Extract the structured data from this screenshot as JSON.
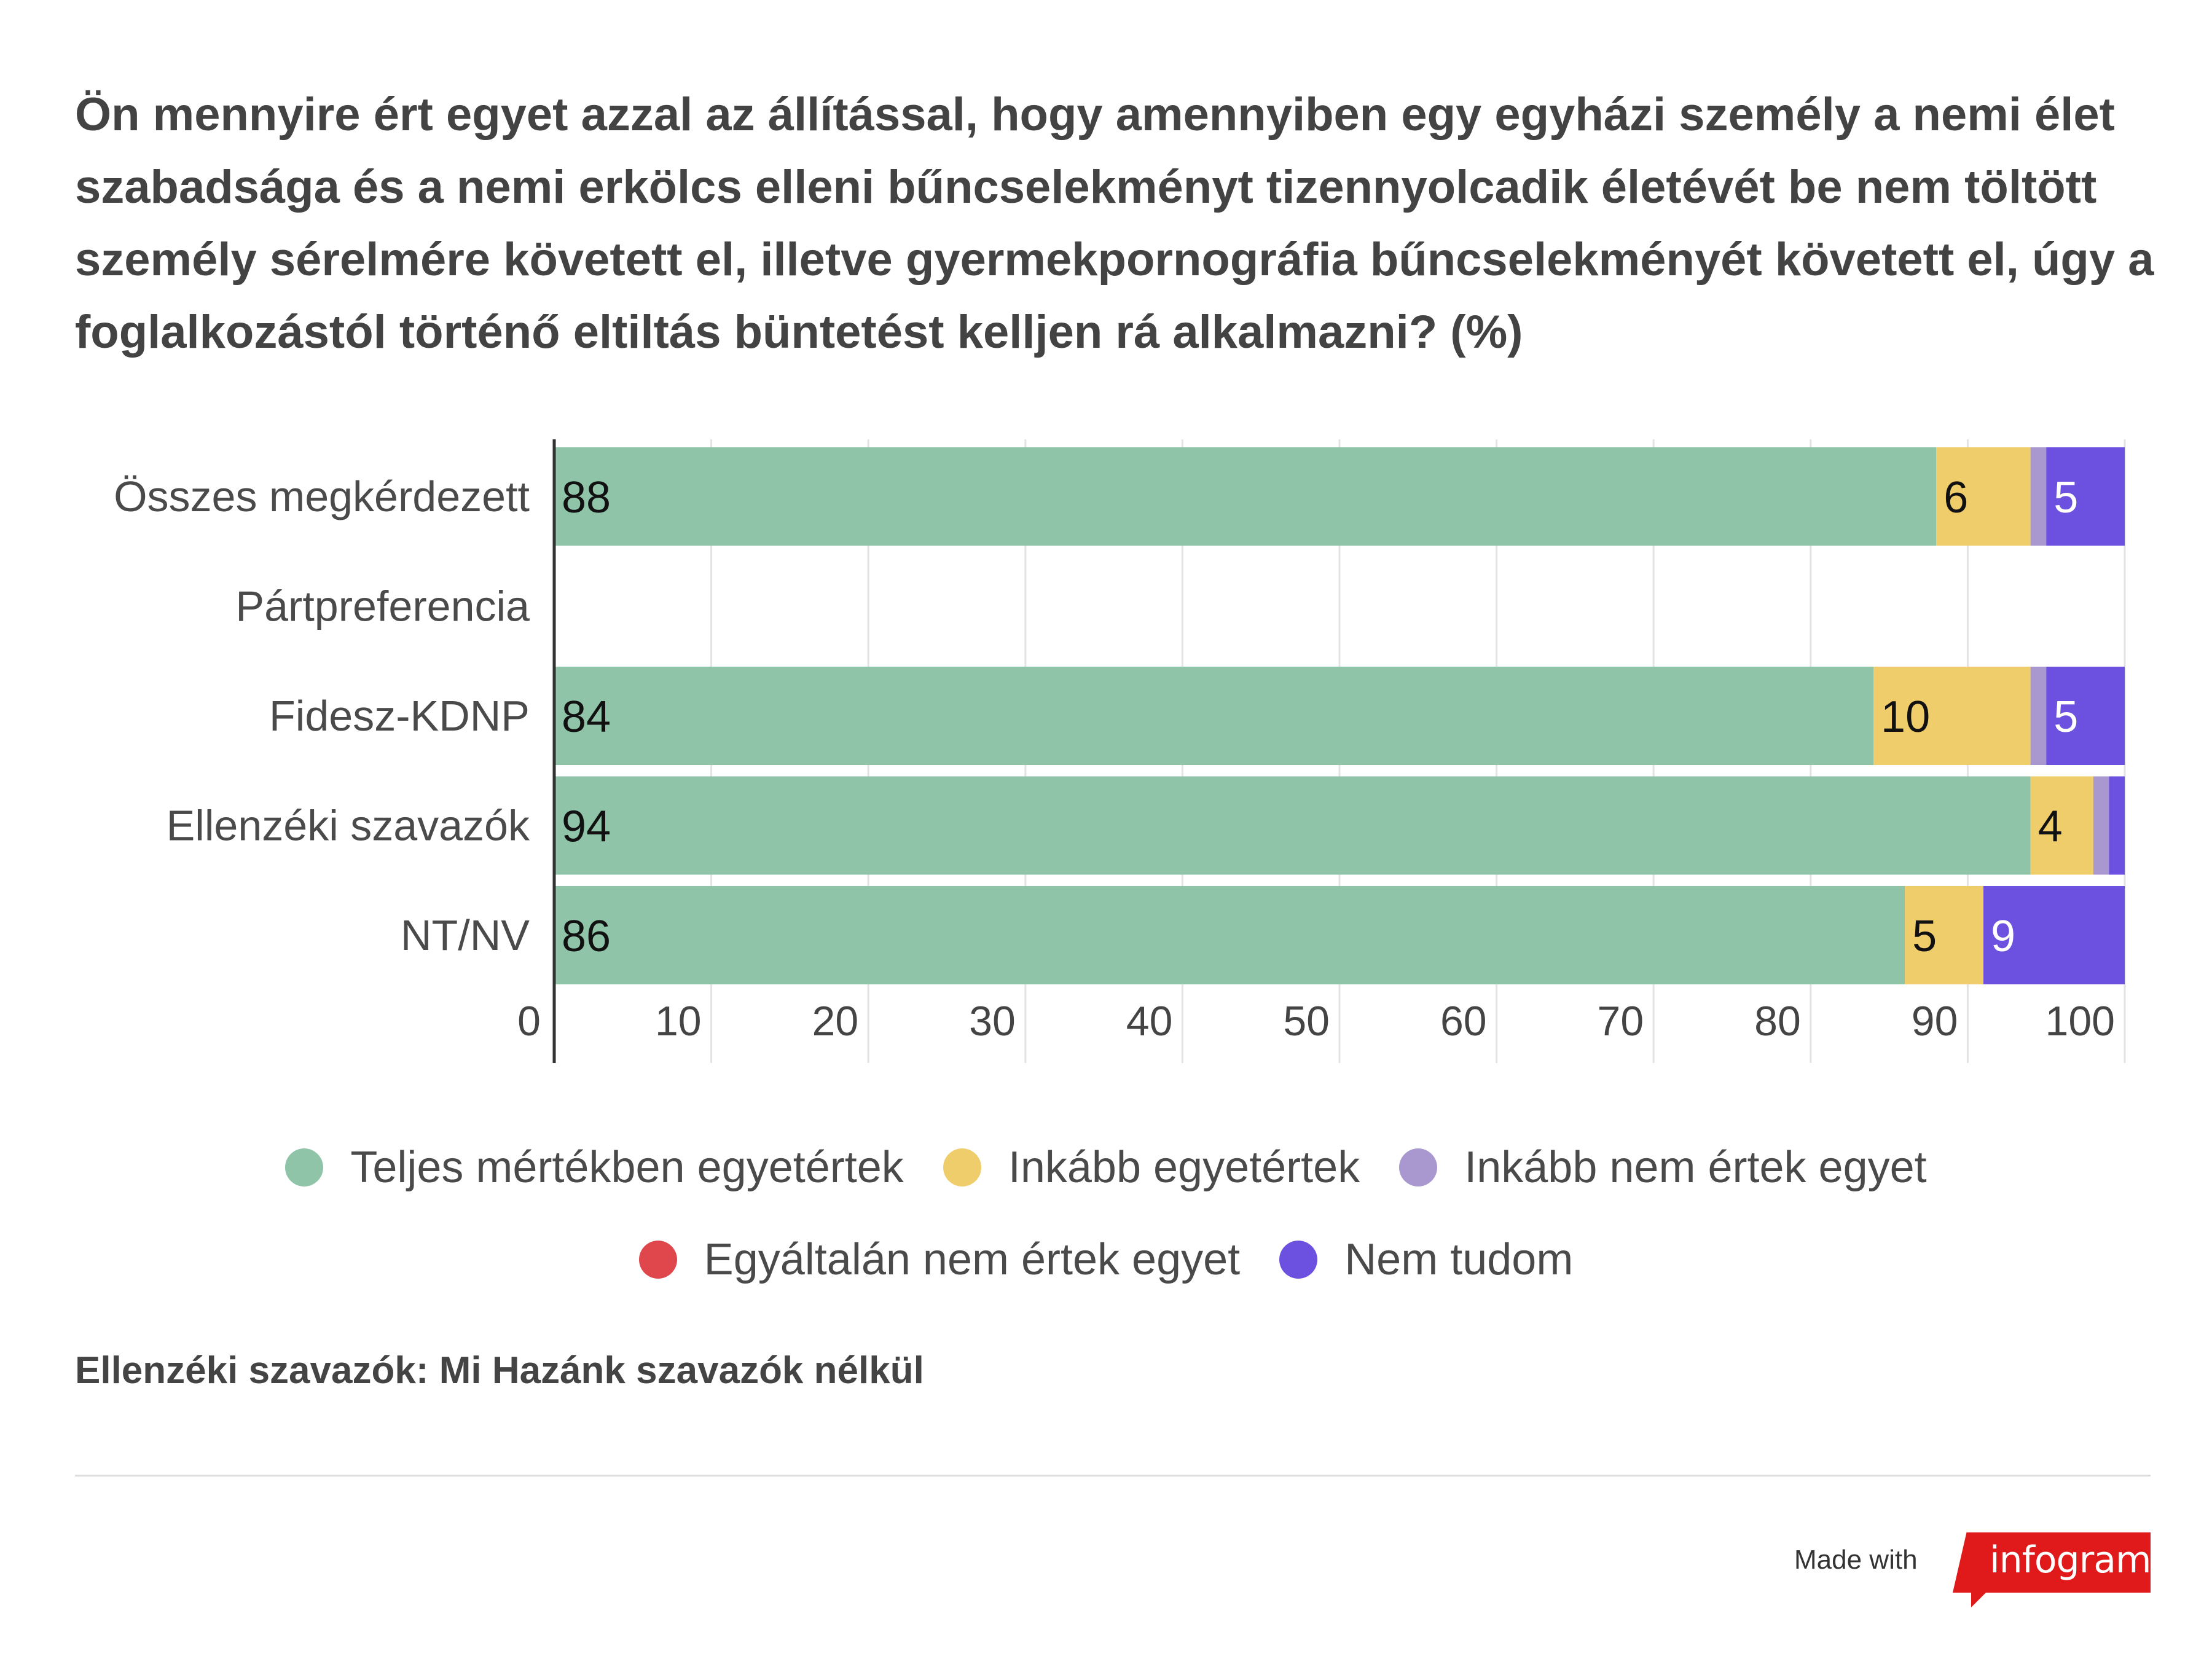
{
  "title": "Ön mennyire ért egyet azzal az állítással, hogy amennyiben egy egyházi személy a nemi élet szabadsága és a nemi erkölcs elleni bűncselekményt tizennyolcadik életévét be nem töltött személy sérelmére követett el, illetve gyermekpornográfia bűncselekményét követett el, úgy a foglalkozástól történő eltiltás büntetést kelljen rá alkalmazni? (%)",
  "chart_data": {
    "type": "bar",
    "orientation": "horizontal",
    "stacked": true,
    "title": "Ön mennyire ért egyet azzal az állítással, hogy amennyiben egy egyházi személy a nemi élet szabadsága és a nemi erkölcs elleni bűncselekményt tizennyolcadik életévét be nem töltött személy sérelmére követett el, illetve gyermekpornográfia bűncselekményét követett el, úgy a foglalkozástól történő eltiltás büntetést kelljen rá alkalmazni? (%)",
    "categories": [
      "Összes megkérdezett",
      "Pártpreferencia",
      "Fidesz-KDNP",
      "Ellenzéki szavazók",
      "NT/NV"
    ],
    "series": [
      {
        "name": "Teljes mértékben egyetértek",
        "color": "#8fc4a8",
        "label_color": "#111111",
        "values": [
          88,
          null,
          84,
          94,
          86
        ]
      },
      {
        "name": "Inkább egyetértek",
        "color": "#f0cd6b",
        "label_color": "#111111",
        "values": [
          6,
          null,
          10,
          4,
          5
        ]
      },
      {
        "name": "Inkább nem értek egyet",
        "color": "#a998cf",
        "label_color": "#ffffff",
        "values": [
          1,
          null,
          1,
          1,
          0
        ]
      },
      {
        "name": "Egyáltalán nem értek egyet",
        "color": "#e0474c",
        "label_color": "#ffffff",
        "values": [
          0,
          null,
          0,
          0,
          0
        ]
      },
      {
        "name": "Nem tudom",
        "color": "#6c50e0",
        "label_color": "#ffffff",
        "values": [
          5,
          null,
          5,
          1,
          9
        ]
      }
    ],
    "data_labels": [
      [
        "88",
        "6",
        "",
        "",
        "5"
      ],
      [
        "",
        "",
        "",
        "",
        ""
      ],
      [
        "84",
        "10",
        "",
        "",
        "5"
      ],
      [
        "94",
        "4",
        "",
        "",
        ""
      ],
      [
        "86",
        "5",
        "",
        "",
        "9"
      ]
    ],
    "xlim": [
      0,
      100
    ],
    "xticks": [
      0,
      10,
      20,
      30,
      40,
      50,
      60,
      70,
      80,
      90,
      100
    ],
    "grid": true,
    "legend": "bottom-center"
  },
  "legend": {
    "rows": [
      [
        {
          "label": "Teljes mértékben egyetértek",
          "color": "#8fc4a8"
        },
        {
          "label": "Inkább egyetértek",
          "color": "#f0cd6b"
        },
        {
          "label": "Inkább nem értek egyet",
          "color": "#a998cf"
        }
      ],
      [
        {
          "label": "Egyáltalán nem értek egyet",
          "color": "#e0474c"
        },
        {
          "label": "Nem tudom",
          "color": "#6c50e0"
        }
      ]
    ]
  },
  "footnote": "Ellenzéki szavazók: Mi Hazánk szavazók nélkül",
  "footer": {
    "made_with": "Made with",
    "brand": "infogram",
    "brand_color": "#e0191b"
  }
}
